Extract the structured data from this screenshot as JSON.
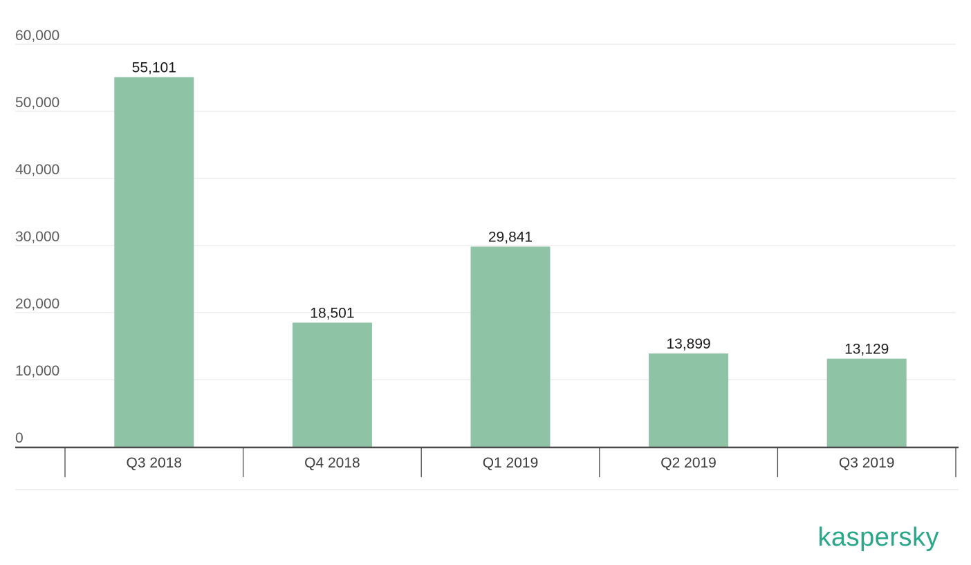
{
  "chart_data": {
    "type": "bar",
    "categories": [
      "Q3 2018",
      "Q4 2018",
      "Q1 2019",
      "Q2 2019",
      "Q3 2019"
    ],
    "values": [
      55101,
      18501,
      29841,
      13899,
      13129
    ],
    "data_labels": [
      "55,101",
      "18,501",
      "29,841",
      "13,899",
      "13,129"
    ],
    "y_ticks": [
      0,
      10000,
      20000,
      30000,
      40000,
      50000,
      60000
    ],
    "y_tick_labels": [
      "0",
      "10,000",
      "20,000",
      "30,000",
      "40,000",
      "50,000",
      "60,000"
    ],
    "ylim": [
      0,
      60000
    ],
    "grid": true,
    "legend": "none",
    "bar_color": "#8fc3a6",
    "title": "",
    "xlabel": "",
    "ylabel": ""
  },
  "branding": {
    "logo_text": "kaspersky",
    "logo_color": "#2aa689"
  }
}
